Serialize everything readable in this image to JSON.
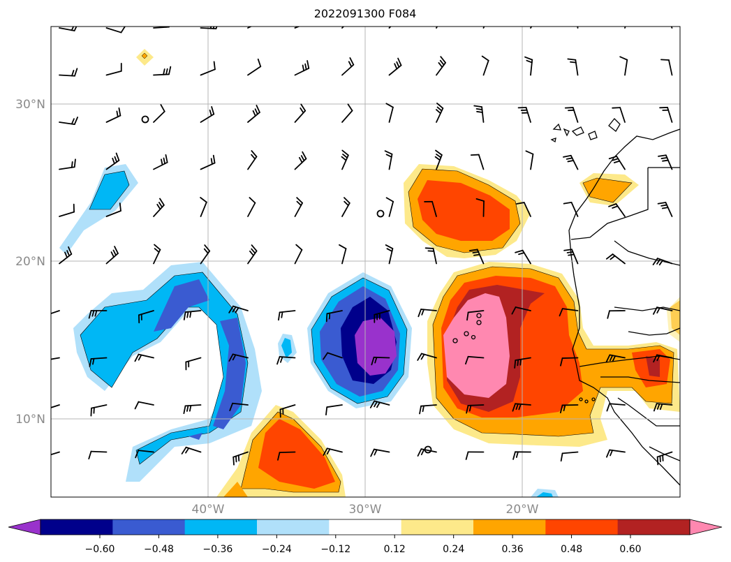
{
  "title": "2022091300 F084",
  "lat_labels": [
    "30°N",
    "20°N",
    "10°N"
  ],
  "lon_labels": [
    "40°W",
    "30°W",
    "20°W"
  ],
  "colorbar": {
    "ticks": [
      "−0.60",
      "−0.48",
      "−0.36",
      "−0.24",
      "−0.12",
      "0.12",
      "0.24",
      "0.36",
      "0.48",
      "0.60"
    ],
    "colors": [
      "#9932cc",
      "#00008b",
      "#3a5bd1",
      "#00b7f5",
      "#b0e0fa",
      "#ffffff",
      "#fde98a",
      "#ffa500",
      "#ff4500",
      "#b22222",
      "#ff88b0"
    ]
  },
  "map": {
    "extent": {
      "lon_min": -50,
      "lon_max": -10,
      "lat_min": 5,
      "lat_max": 35
    },
    "grid_lons": [
      -40,
      -30,
      -20
    ],
    "grid_lats": [
      30,
      20,
      10
    ]
  }
}
